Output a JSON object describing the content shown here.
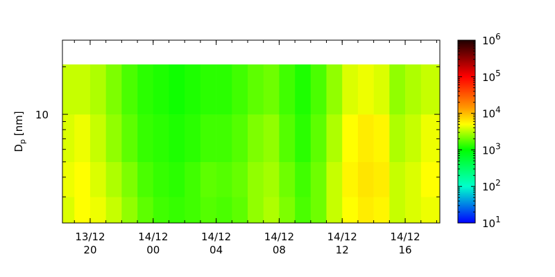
{
  "chart_data": {
    "type": "heatmap",
    "y_label": "D",
    "y_label_sub": "p",
    "y_label_unit": "[nm]",
    "x_edges": [
      18.24,
      19,
      20,
      21,
      22,
      23,
      24,
      25,
      26,
      27,
      28,
      29,
      30,
      31,
      32,
      33,
      34,
      35,
      36,
      37,
      38,
      39,
      40,
      41,
      42.2
    ],
    "y_edges": [
      2.05,
      3,
      5,
      10,
      20.7
    ],
    "values": [
      [
        4000,
        5000,
        4500,
        3500,
        2500,
        1800,
        1500,
        1400,
        1500,
        1700,
        1600,
        1800,
        2500,
        3000,
        2200,
        1600,
        2000,
        3500,
        5000,
        6000,
        5500,
        3500,
        4000,
        4500
      ],
      [
        4500,
        5000,
        4000,
        3000,
        2200,
        1600,
        1400,
        1300,
        1500,
        1800,
        1700,
        1900,
        2500,
        2800,
        2000,
        1500,
        2000,
        3500,
        5500,
        6500,
        6000,
        3500,
        4000,
        5000
      ],
      [
        4000,
        4500,
        3500,
        2500,
        1800,
        1400,
        1300,
        1200,
        1300,
        1500,
        1500,
        1700,
        2200,
        2500,
        1700,
        1300,
        1800,
        3000,
        5000,
        6000,
        5500,
        3000,
        3500,
        4500
      ],
      [
        3500,
        3500,
        3000,
        2200,
        1600,
        1300,
        1200,
        1100,
        1200,
        1300,
        1300,
        1500,
        1800,
        2000,
        1500,
        1200,
        1600,
        2500,
        4000,
        4500,
        4000,
        2500,
        3000,
        3500
      ]
    ],
    "xlim": [
      18.24,
      42.2
    ],
    "xticks": [
      {
        "value": 20,
        "date": "13/12",
        "label": "20"
      },
      {
        "value": 24,
        "date": "14/12",
        "label": "00"
      },
      {
        "value": 28,
        "date": "14/12",
        "label": "04"
      },
      {
        "value": 32,
        "date": "14/12",
        "label": "08"
      },
      {
        "value": 36,
        "date": "14/12",
        "label": "12"
      },
      {
        "value": 40,
        "date": "14/12",
        "label": "16"
      }
    ],
    "xminor_step": 1,
    "ylim": [
      2.05,
      29.5
    ],
    "y_log": true,
    "yticks": [
      10
    ],
    "yminor": [
      3,
      4,
      5,
      6,
      7,
      8,
      9,
      20
    ],
    "colorbar": {
      "log": true,
      "lim": [
        10,
        1000000
      ],
      "ticks": [
        {
          "value": 10,
          "label": "10",
          "exponent": "1"
        },
        {
          "value": 100,
          "label": "10",
          "exponent": "2"
        },
        {
          "value": 1000,
          "label": "10",
          "exponent": "3"
        },
        {
          "value": 10000,
          "label": "10",
          "exponent": "4"
        },
        {
          "value": 100000,
          "label": "10",
          "exponent": "5"
        },
        {
          "value": 1000000,
          "label": "10",
          "exponent": "6"
        }
      ],
      "colormap": [
        {
          "at": 0,
          "color": "#0000ff"
        },
        {
          "at": 0.2,
          "color": "#00ffcc"
        },
        {
          "at": 0.4,
          "color": "#00ff00"
        },
        {
          "at": 0.54,
          "color": "#ffff00"
        },
        {
          "at": 0.63,
          "color": "#ff9900"
        },
        {
          "at": 0.8,
          "color": "#ff0000"
        },
        {
          "at": 1,
          "color": "#200000"
        }
      ]
    }
  }
}
